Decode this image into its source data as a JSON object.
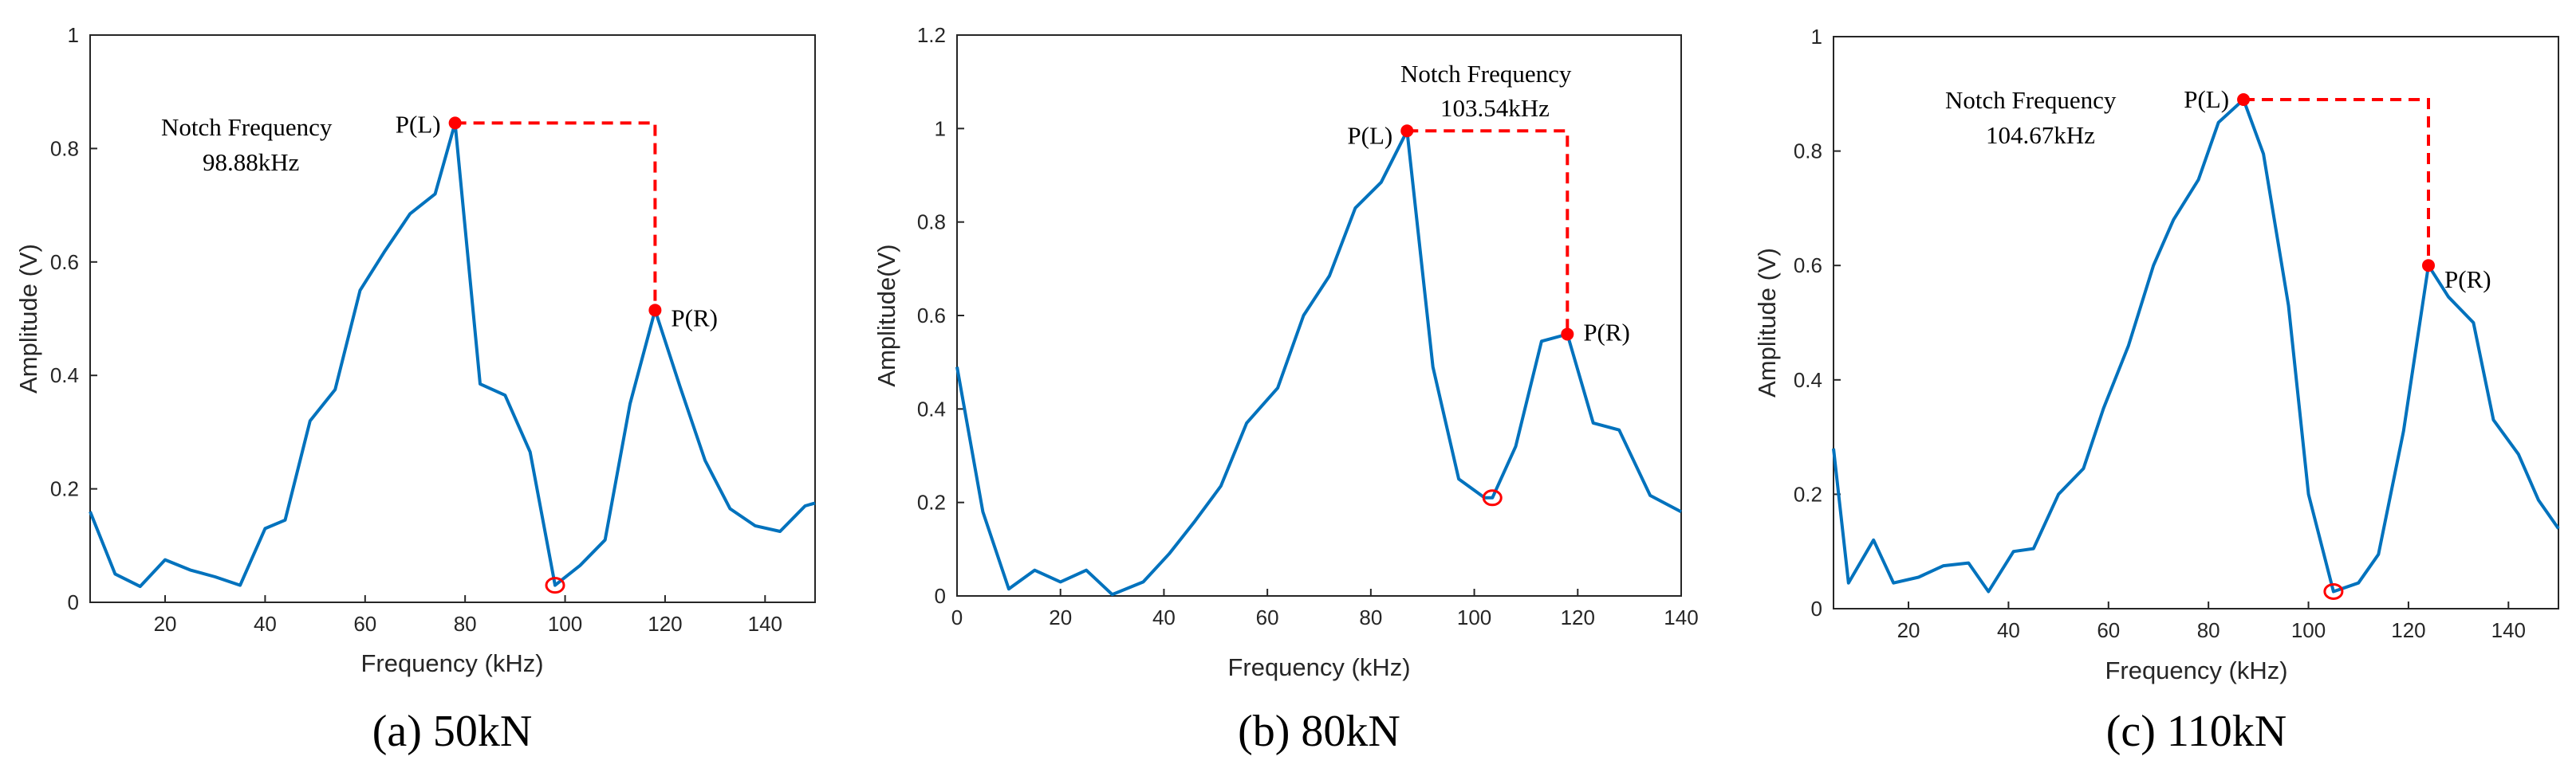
{
  "colors": {
    "line": "#0072BD",
    "marker": "#FF0000",
    "dashed": "#FF0000",
    "axis": "#262626"
  },
  "chart_data": [
    {
      "type": "line",
      "caption": "(a) 50kN",
      "xlabel": "Frequency (kHz)",
      "ylabel": "Amplitude (V)",
      "xlim": [
        5,
        150
      ],
      "ylim": [
        0,
        1
      ],
      "xticks": [
        20,
        40,
        60,
        80,
        100,
        120,
        140
      ],
      "yticks": [
        0,
        0.2,
        0.4,
        0.6,
        0.8,
        1
      ],
      "ytick_labels": [
        "0",
        "0.2",
        "0.4",
        "0.6",
        "0.8",
        "1"
      ],
      "x": [
        5,
        10,
        15,
        20,
        25,
        30,
        35,
        40,
        44,
        49,
        54,
        59,
        64,
        69,
        74,
        78,
        83,
        88,
        93,
        98,
        103,
        108,
        113,
        118,
        123,
        128,
        133,
        138,
        143,
        148,
        150
      ],
      "y": [
        0.16,
        0.05,
        0.028,
        0.075,
        0.057,
        0.045,
        0.03,
        0.13,
        0.145,
        0.32,
        0.375,
        0.55,
        0.62,
        0.685,
        0.72,
        0.845,
        0.385,
        0.365,
        0.265,
        0.03,
        0.065,
        0.11,
        0.35,
        0.515,
        0.38,
        0.25,
        0.165,
        0.135,
        0.125,
        0.17,
        0.175
      ],
      "peak_left": {
        "x": 78,
        "y": 0.845,
        "label": "P(L)"
      },
      "peak_right": {
        "x": 118,
        "y": 0.515,
        "label": "P(R)"
      },
      "notch": {
        "x": 98,
        "y": 0.03
      },
      "annotation": {
        "title": "Notch Frequency",
        "value": "98.88kHz"
      }
    },
    {
      "type": "line",
      "caption": "(b) 80kN",
      "xlabel": "Frequency (kHz)",
      "ylabel": "Amplitude(V)",
      "xlim": [
        0,
        140
      ],
      "ylim": [
        0,
        1.2
      ],
      "xticks": [
        0,
        20,
        40,
        60,
        80,
        100,
        120,
        140
      ],
      "yticks": [
        0,
        0.2,
        0.4,
        0.6,
        0.8,
        1,
        1.2
      ],
      "ytick_labels": [
        "0",
        "0.2",
        "0.4",
        "0.6",
        "0.8",
        "1",
        "1.2"
      ],
      "x": [
        0,
        5,
        10,
        15,
        20,
        25,
        30,
        36,
        41,
        46,
        51,
        56,
        62,
        67,
        72,
        77,
        82,
        87,
        92,
        97,
        102,
        103.5,
        108,
        113,
        118,
        123,
        128,
        134,
        140
      ],
      "y": [
        0.49,
        0.18,
        0.015,
        0.055,
        0.03,
        0.055,
        0.003,
        0.03,
        0.09,
        0.16,
        0.235,
        0.37,
        0.445,
        0.6,
        0.685,
        0.83,
        0.885,
        0.995,
        0.49,
        0.25,
        0.21,
        0.21,
        0.32,
        0.545,
        0.56,
        0.37,
        0.355,
        0.215,
        0.18
      ],
      "peak_left": {
        "x": 87,
        "y": 0.995,
        "label": "P(L)"
      },
      "peak_right": {
        "x": 118,
        "y": 0.56,
        "label": "P(R)"
      },
      "notch": {
        "x": 103.5,
        "y": 0.21
      },
      "annotation": {
        "title": "Notch Frequency",
        "value": "103.54kHz"
      }
    },
    {
      "type": "line",
      "caption": "(c) 110kN",
      "xlabel": "Frequency (kHz)",
      "ylabel": "Amplitude (V)",
      "xlim": [
        5,
        150
      ],
      "ylim": [
        0,
        1
      ],
      "xticks": [
        20,
        40,
        60,
        80,
        100,
        120,
        140
      ],
      "yticks": [
        0,
        0.2,
        0.4,
        0.6,
        0.8,
        1
      ],
      "ytick_labels": [
        "0",
        "0.2",
        "0.4",
        "0.6",
        "0.8",
        "1"
      ],
      "x": [
        5,
        8,
        13,
        17,
        22,
        27,
        32,
        36,
        41,
        45,
        50,
        55,
        59,
        64,
        69,
        73,
        78,
        82,
        87,
        91,
        96,
        100,
        105,
        110,
        114,
        119,
        124,
        128,
        133,
        137,
        142,
        146,
        150
      ],
      "y": [
        0.28,
        0.045,
        0.12,
        0.045,
        0.055,
        0.075,
        0.08,
        0.03,
        0.1,
        0.105,
        0.2,
        0.245,
        0.35,
        0.46,
        0.6,
        0.68,
        0.75,
        0.85,
        0.89,
        0.795,
        0.53,
        0.2,
        0.03,
        0.045,
        0.095,
        0.31,
        0.6,
        0.545,
        0.5,
        0.33,
        0.27,
        0.19,
        0.14
      ],
      "peak_left": {
        "x": 87,
        "y": 0.89,
        "label": "P(L)"
      },
      "peak_right": {
        "x": 124,
        "y": 0.6,
        "label": "P(R)"
      },
      "notch": {
        "x": 105,
        "y": 0.03
      },
      "annotation": {
        "title": "Notch Frequency",
        "value": "104.67kHz"
      }
    }
  ]
}
